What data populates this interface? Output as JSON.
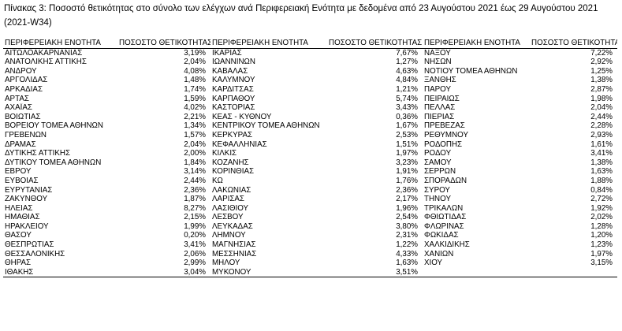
{
  "caption": "Πίνακας 3: Ποσοστό θετικότητας στο σύνολο των ελέγχων ανά Περιφερειακή Ενότητα με δεδομένα από 23 Αυγούστου 2021 έως 29 Αυγούστου 2021 (2021-W34)",
  "headers": {
    "region": "ΠΕΡΙΦΕΡΕΙΑΚΗ ΕΝΟΤΗΤΑ",
    "rate": "ΠΟΣΟΣΤΟ ΘΕΤΙΚΟΤΗΤΑΣ"
  },
  "columns": [
    [
      {
        "name": "ΑΙΤΩΛΟΑΚΑΡΝΑΝΙΑΣ",
        "value": "3,19%"
      },
      {
        "name": "ΑΝΑΤΟΛΙΚΗΣ ΑΤΤΙΚΗΣ",
        "value": "2,04%"
      },
      {
        "name": "ΑΝΔΡΟΥ",
        "value": "4,08%"
      },
      {
        "name": "ΑΡΓΟΛΙΔΑΣ",
        "value": "1,48%"
      },
      {
        "name": "ΑΡΚΑΔΙΑΣ",
        "value": "1,74%"
      },
      {
        "name": "ΑΡΤΑΣ",
        "value": "1,59%"
      },
      {
        "name": "ΑΧΑΪΑΣ",
        "value": "4,02%"
      },
      {
        "name": "ΒΟΙΩΤΙΑΣ",
        "value": "2,21%"
      },
      {
        "name": "ΒΟΡΕΙΟΥ ΤΟΜΕΑ ΑΘΗΝΩΝ",
        "value": "1,34%"
      },
      {
        "name": "ΓΡΕΒΕΝΩΝ",
        "value": "1,57%"
      },
      {
        "name": "ΔΡΑΜΑΣ",
        "value": "2,04%"
      },
      {
        "name": "ΔΥΤΙΚΗΣ ΑΤΤΙΚΗΣ",
        "value": "2,00%"
      },
      {
        "name": "ΔΥΤΙΚΟΥ ΤΟΜΕΑ ΑΘΗΝΩΝ",
        "value": "1,84%"
      },
      {
        "name": "ΕΒΡΟΥ",
        "value": "3,14%"
      },
      {
        "name": "ΕΥΒΟΙΑΣ",
        "value": "2,44%"
      },
      {
        "name": "ΕΥΡΥΤΑΝΙΑΣ",
        "value": "2,36%"
      },
      {
        "name": "ΖΑΚΥΝΘΟΥ",
        "value": "1,87%"
      },
      {
        "name": "ΗΛΕΙΑΣ",
        "value": "8,27%"
      },
      {
        "name": "ΗΜΑΘΙΑΣ",
        "value": "2,15%"
      },
      {
        "name": "ΗΡΑΚΛΕΙΟΥ",
        "value": "1,99%"
      },
      {
        "name": "ΘΑΣΟΥ",
        "value": "0,20%"
      },
      {
        "name": "ΘΕΣΠΡΩΤΙΑΣ",
        "value": "3,41%"
      },
      {
        "name": "ΘΕΣΣΑΛΟΝΙΚΗΣ",
        "value": "2,06%"
      },
      {
        "name": "ΘΗΡΑΣ",
        "value": "2,99%"
      },
      {
        "name": "ΙΘΑΚΗΣ",
        "value": "3,04%"
      }
    ],
    [
      {
        "name": "ΙΚΑΡΙΑΣ",
        "value": "7,67%"
      },
      {
        "name": "ΙΩΑΝΝΙΝΩΝ",
        "value": "1,27%"
      },
      {
        "name": "ΚΑΒΑΛΑΣ",
        "value": "4,63%"
      },
      {
        "name": "ΚΑΛΥΜΝΟΥ",
        "value": "4,84%"
      },
      {
        "name": "ΚΑΡΔΙΤΣΑΣ",
        "value": "1,21%"
      },
      {
        "name": "ΚΑΡΠΑΘΟΥ",
        "value": "5,74%"
      },
      {
        "name": "ΚΑΣΤΟΡΙΑΣ",
        "value": "3,43%"
      },
      {
        "name": "ΚΕΑΣ - ΚΥΘΝΟΥ",
        "value": "0,36%"
      },
      {
        "name": "ΚΕΝΤΡΙΚΟΥ ΤΟΜΕΑ ΑΘΗΝΩΝ",
        "value": "1,67%"
      },
      {
        "name": "ΚΕΡΚΥΡΑΣ",
        "value": "2,53%"
      },
      {
        "name": "ΚΕΦΑΛΛΗΝΙΑΣ",
        "value": "1,51%"
      },
      {
        "name": "ΚΙΛΚΙΣ",
        "value": "1,97%"
      },
      {
        "name": "ΚΟΖΑΝΗΣ",
        "value": "3,23%"
      },
      {
        "name": "ΚΟΡΙΝΘΙΑΣ",
        "value": "1,91%"
      },
      {
        "name": "ΚΩ",
        "value": "1,76%"
      },
      {
        "name": "ΛΑΚΩΝΙΑΣ",
        "value": "2,36%"
      },
      {
        "name": "ΛΑΡΙΣΑΣ",
        "value": "2,17%"
      },
      {
        "name": "ΛΑΣΙΘΙΟΥ",
        "value": "1,96%"
      },
      {
        "name": "ΛΕΣΒΟΥ",
        "value": "2,54%"
      },
      {
        "name": "ΛΕΥΚΑΔΑΣ",
        "value": "3,80%"
      },
      {
        "name": "ΛΗΜΝΟΥ",
        "value": "2,31%"
      },
      {
        "name": "ΜΑΓΝΗΣΙΑΣ",
        "value": "1,22%"
      },
      {
        "name": "ΜΕΣΣΗΝΙΑΣ",
        "value": "4,33%"
      },
      {
        "name": "ΜΗΛΟΥ",
        "value": "1,63%"
      },
      {
        "name": "ΜΥΚΟΝΟΥ",
        "value": "3,51%"
      }
    ],
    [
      {
        "name": "ΝΑΞΟΥ",
        "value": "7,22%"
      },
      {
        "name": "ΝΗΣΩΝ",
        "value": "2,92%"
      },
      {
        "name": "ΝΟΤΙΟΥ ΤΟΜΕΑ ΑΘΗΝΩΝ",
        "value": "1,25%"
      },
      {
        "name": "ΞΑΝΘΗΣ",
        "value": "1,38%"
      },
      {
        "name": "ΠΑΡΟΥ",
        "value": "2,87%"
      },
      {
        "name": "ΠΕΙΡΑΙΩΣ",
        "value": "1,98%"
      },
      {
        "name": "ΠΕΛΛΑΣ",
        "value": "2,04%"
      },
      {
        "name": "ΠΙΕΡΙΑΣ",
        "value": "2,44%"
      },
      {
        "name": "ΠΡΕΒΕΖΑΣ",
        "value": "2,28%"
      },
      {
        "name": "ΡΕΘΥΜΝΟΥ",
        "value": "2,93%"
      },
      {
        "name": "ΡΟΔΟΠΗΣ",
        "value": "1,61%"
      },
      {
        "name": "ΡΟΔΟΥ",
        "value": "3,41%"
      },
      {
        "name": "ΣΑΜΟΥ",
        "value": "1,38%"
      },
      {
        "name": "ΣΕΡΡΩΝ",
        "value": "1,63%"
      },
      {
        "name": "ΣΠΟΡΑΔΩΝ",
        "value": "1,88%"
      },
      {
        "name": "ΣΥΡΟΥ",
        "value": "0,84%"
      },
      {
        "name": "ΤΗΝΟΥ",
        "value": "2,72%"
      },
      {
        "name": "ΤΡΙΚΑΛΩΝ",
        "value": "1,92%"
      },
      {
        "name": "ΦΘΙΩΤΙΔΑΣ",
        "value": "2,02%"
      },
      {
        "name": "ΦΛΩΡΙΝΑΣ",
        "value": "1,28%"
      },
      {
        "name": "ΦΩΚΙΔΑΣ",
        "value": "1,20%"
      },
      {
        "name": "ΧΑΛΚΙΔΙΚΗΣ",
        "value": "1,23%"
      },
      {
        "name": "ΧΑΝΙΩΝ",
        "value": "1,97%"
      },
      {
        "name": "ΧΙΟΥ",
        "value": "3,15%"
      }
    ]
  ]
}
